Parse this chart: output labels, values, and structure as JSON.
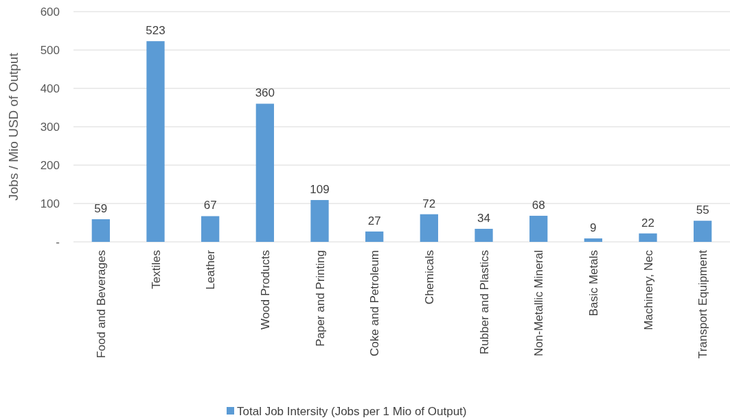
{
  "chart_data": {
    "type": "bar",
    "ylabel": "Jobs / Mio USD of Output",
    "categories": [
      "Food and Beverages",
      "Textiles",
      "Leather",
      "Wood Products",
      "Paper and Printing",
      "Coke and Petroleum",
      "Chemicals",
      "Rubber and Plastics",
      "Non-Metallic Mineral",
      "Basic Metals",
      "Machinery, Nec",
      "Transport Equipment"
    ],
    "series": [
      {
        "name": "Total Job Intersity (Jobs per 1 Mio of Output)",
        "color": "#5b9bd5",
        "values": [
          59,
          523,
          67,
          360,
          109,
          27,
          72,
          34,
          68,
          9,
          22,
          55
        ]
      }
    ],
    "ylim": [
      0,
      600
    ],
    "yticks": [
      {
        "value": 0,
        "label": "-"
      },
      100,
      200,
      300,
      400,
      500,
      600
    ],
    "grid": "y",
    "legend": "bottom",
    "data_labels": true
  }
}
